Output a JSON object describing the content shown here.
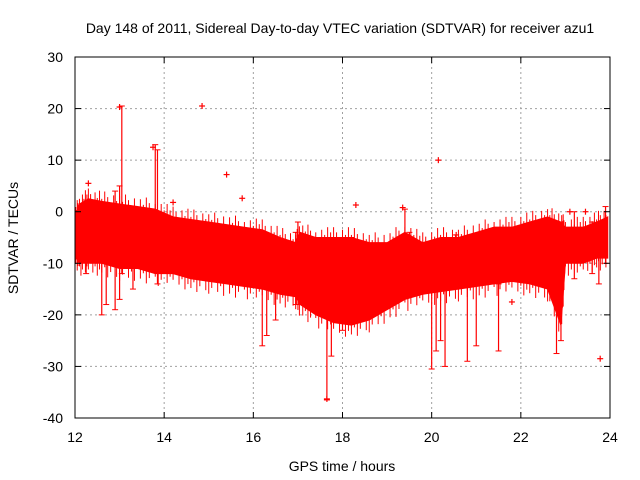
{
  "chart_data": {
    "type": "scatter",
    "title": "Day 148 of 2011, Sidereal Day-to-day VTEC variation (SDTVAR) for receiver azu1",
    "xlabel": "GPS time / hours",
    "ylabel": "SDTVAR / TECUs",
    "xlim": [
      12,
      24
    ],
    "ylim": [
      -40,
      30
    ],
    "x_ticks": [
      12,
      14,
      16,
      18,
      20,
      22,
      24
    ],
    "x_tick_labels": [
      "12",
      "14",
      "16",
      "18",
      "20",
      "22",
      "24"
    ],
    "y_ticks": [
      -40,
      -30,
      -20,
      -10,
      0,
      10,
      20,
      30
    ],
    "y_tick_labels": [
      "-40",
      "-30",
      "-20",
      "-10",
      "0",
      "10",
      "20",
      "30"
    ],
    "grid": true,
    "legend": "none",
    "series_color": "#ff0000",
    "series": [
      {
        "name": "SDTVAR",
        "band": {
          "x": [
            12.0,
            12.1,
            12.3,
            12.6,
            13.0,
            13.4,
            13.8,
            14.2,
            14.6,
            15.0,
            15.4,
            15.8,
            16.2,
            16.6,
            16.95,
            17.05,
            17.4,
            17.8,
            18.2,
            18.6,
            19.0,
            19.4,
            19.8,
            20.2,
            20.6,
            21.0,
            21.4,
            21.8,
            22.2,
            22.6,
            22.9,
            23.0,
            23.4,
            23.7,
            23.95
          ],
          "upper": [
            -1,
            1.5,
            2.5,
            2,
            1.5,
            1,
            0.5,
            -1,
            -1.5,
            -2,
            -2.5,
            -3,
            -3.5,
            -5,
            -6,
            -4,
            -5,
            -5,
            -5,
            -6,
            -6,
            -4,
            -6,
            -5,
            -5,
            -4,
            -3,
            -3,
            -2,
            -1,
            -2,
            -3,
            -3,
            -2,
            -1
          ],
          "lower": [
            -8,
            -10,
            -10,
            -10,
            -11,
            -11,
            -12,
            -12,
            -13,
            -13.5,
            -14,
            -14.5,
            -15,
            -16,
            -16.5,
            -18,
            -20,
            -21.5,
            -22,
            -21,
            -19,
            -17,
            -16,
            -15.5,
            -15,
            -14.5,
            -14,
            -13.5,
            -14,
            -15,
            -22,
            -10,
            -10,
            -9,
            -9
          ]
        },
        "spikes": [
          {
            "x": 12.25,
            "y_top": 1,
            "y_bottom": -12
          },
          {
            "x": 12.6,
            "y_top": -1,
            "y_bottom": -20
          },
          {
            "x": 12.7,
            "y_top": 0,
            "y_bottom": -18
          },
          {
            "x": 12.9,
            "y_top": 4,
            "y_bottom": -19
          },
          {
            "x": 13.0,
            "y_top": 5,
            "y_bottom": -17
          },
          {
            "x": 13.05,
            "y_top": 20.5,
            "y_bottom": -12
          },
          {
            "x": 13.3,
            "y_top": -1,
            "y_bottom": -15
          },
          {
            "x": 13.8,
            "y_top": 13,
            "y_bottom": -3
          },
          {
            "x": 13.85,
            "y_top": 12,
            "y_bottom": -14
          },
          {
            "x": 16.2,
            "y_top": -5,
            "y_bottom": -26
          },
          {
            "x": 16.3,
            "y_top": -6,
            "y_bottom": -24
          },
          {
            "x": 16.5,
            "y_top": -5,
            "y_bottom": -21
          },
          {
            "x": 16.95,
            "y_top": -4,
            "y_bottom": -18
          },
          {
            "x": 17.0,
            "y_top": -2,
            "y_bottom": -10
          },
          {
            "x": 17.65,
            "y_top": -8,
            "y_bottom": -36.5
          },
          {
            "x": 17.75,
            "y_top": -9,
            "y_bottom": -28
          },
          {
            "x": 18.0,
            "y_top": -6,
            "y_bottom": -23
          },
          {
            "x": 18.2,
            "y_top": -5,
            "y_bottom": -12
          },
          {
            "x": 19.4,
            "y_top": 0.5,
            "y_bottom": -10
          },
          {
            "x": 19.5,
            "y_top": -4,
            "y_bottom": -10
          },
          {
            "x": 20.0,
            "y_top": -10,
            "y_bottom": -30.5
          },
          {
            "x": 20.1,
            "y_top": -12,
            "y_bottom": -27
          },
          {
            "x": 20.2,
            "y_top": -14,
            "y_bottom": -25
          },
          {
            "x": 20.3,
            "y_top": -14,
            "y_bottom": -30
          },
          {
            "x": 20.8,
            "y_top": -14,
            "y_bottom": -29
          },
          {
            "x": 21.0,
            "y_top": -14,
            "y_bottom": -26
          },
          {
            "x": 21.5,
            "y_top": -14,
            "y_bottom": -27
          },
          {
            "x": 22.8,
            "y_top": -14,
            "y_bottom": -27.5
          },
          {
            "x": 22.9,
            "y_top": -15,
            "y_bottom": -25
          },
          {
            "x": 23.2,
            "y_top": 0,
            "y_bottom": -13
          },
          {
            "x": 23.6,
            "y_top": -2,
            "y_bottom": -12
          },
          {
            "x": 23.75,
            "y_top": -4,
            "y_bottom": -14
          },
          {
            "x": 23.9,
            "y_top": 1,
            "y_bottom": -10
          }
        ],
        "outliers": [
          {
            "x": 12.3,
            "y": 5.5
          },
          {
            "x": 13.0,
            "y": 20.3
          },
          {
            "x": 13.75,
            "y": 12.5
          },
          {
            "x": 14.85,
            "y": 20.5
          },
          {
            "x": 15.4,
            "y": 7.2
          },
          {
            "x": 15.75,
            "y": 2.6
          },
          {
            "x": 14.2,
            "y": 1.8
          },
          {
            "x": 18.3,
            "y": 1.3
          },
          {
            "x": 19.35,
            "y": 0.8
          },
          {
            "x": 20.15,
            "y": 10
          },
          {
            "x": 20.55,
            "y": -4.5
          },
          {
            "x": 21.8,
            "y": -17.5
          },
          {
            "x": 23.1,
            "y": 0
          },
          {
            "x": 23.45,
            "y": 0
          },
          {
            "x": 23.78,
            "y": -28.5
          },
          {
            "x": 17.65,
            "y": -36.3
          }
        ]
      }
    ]
  }
}
